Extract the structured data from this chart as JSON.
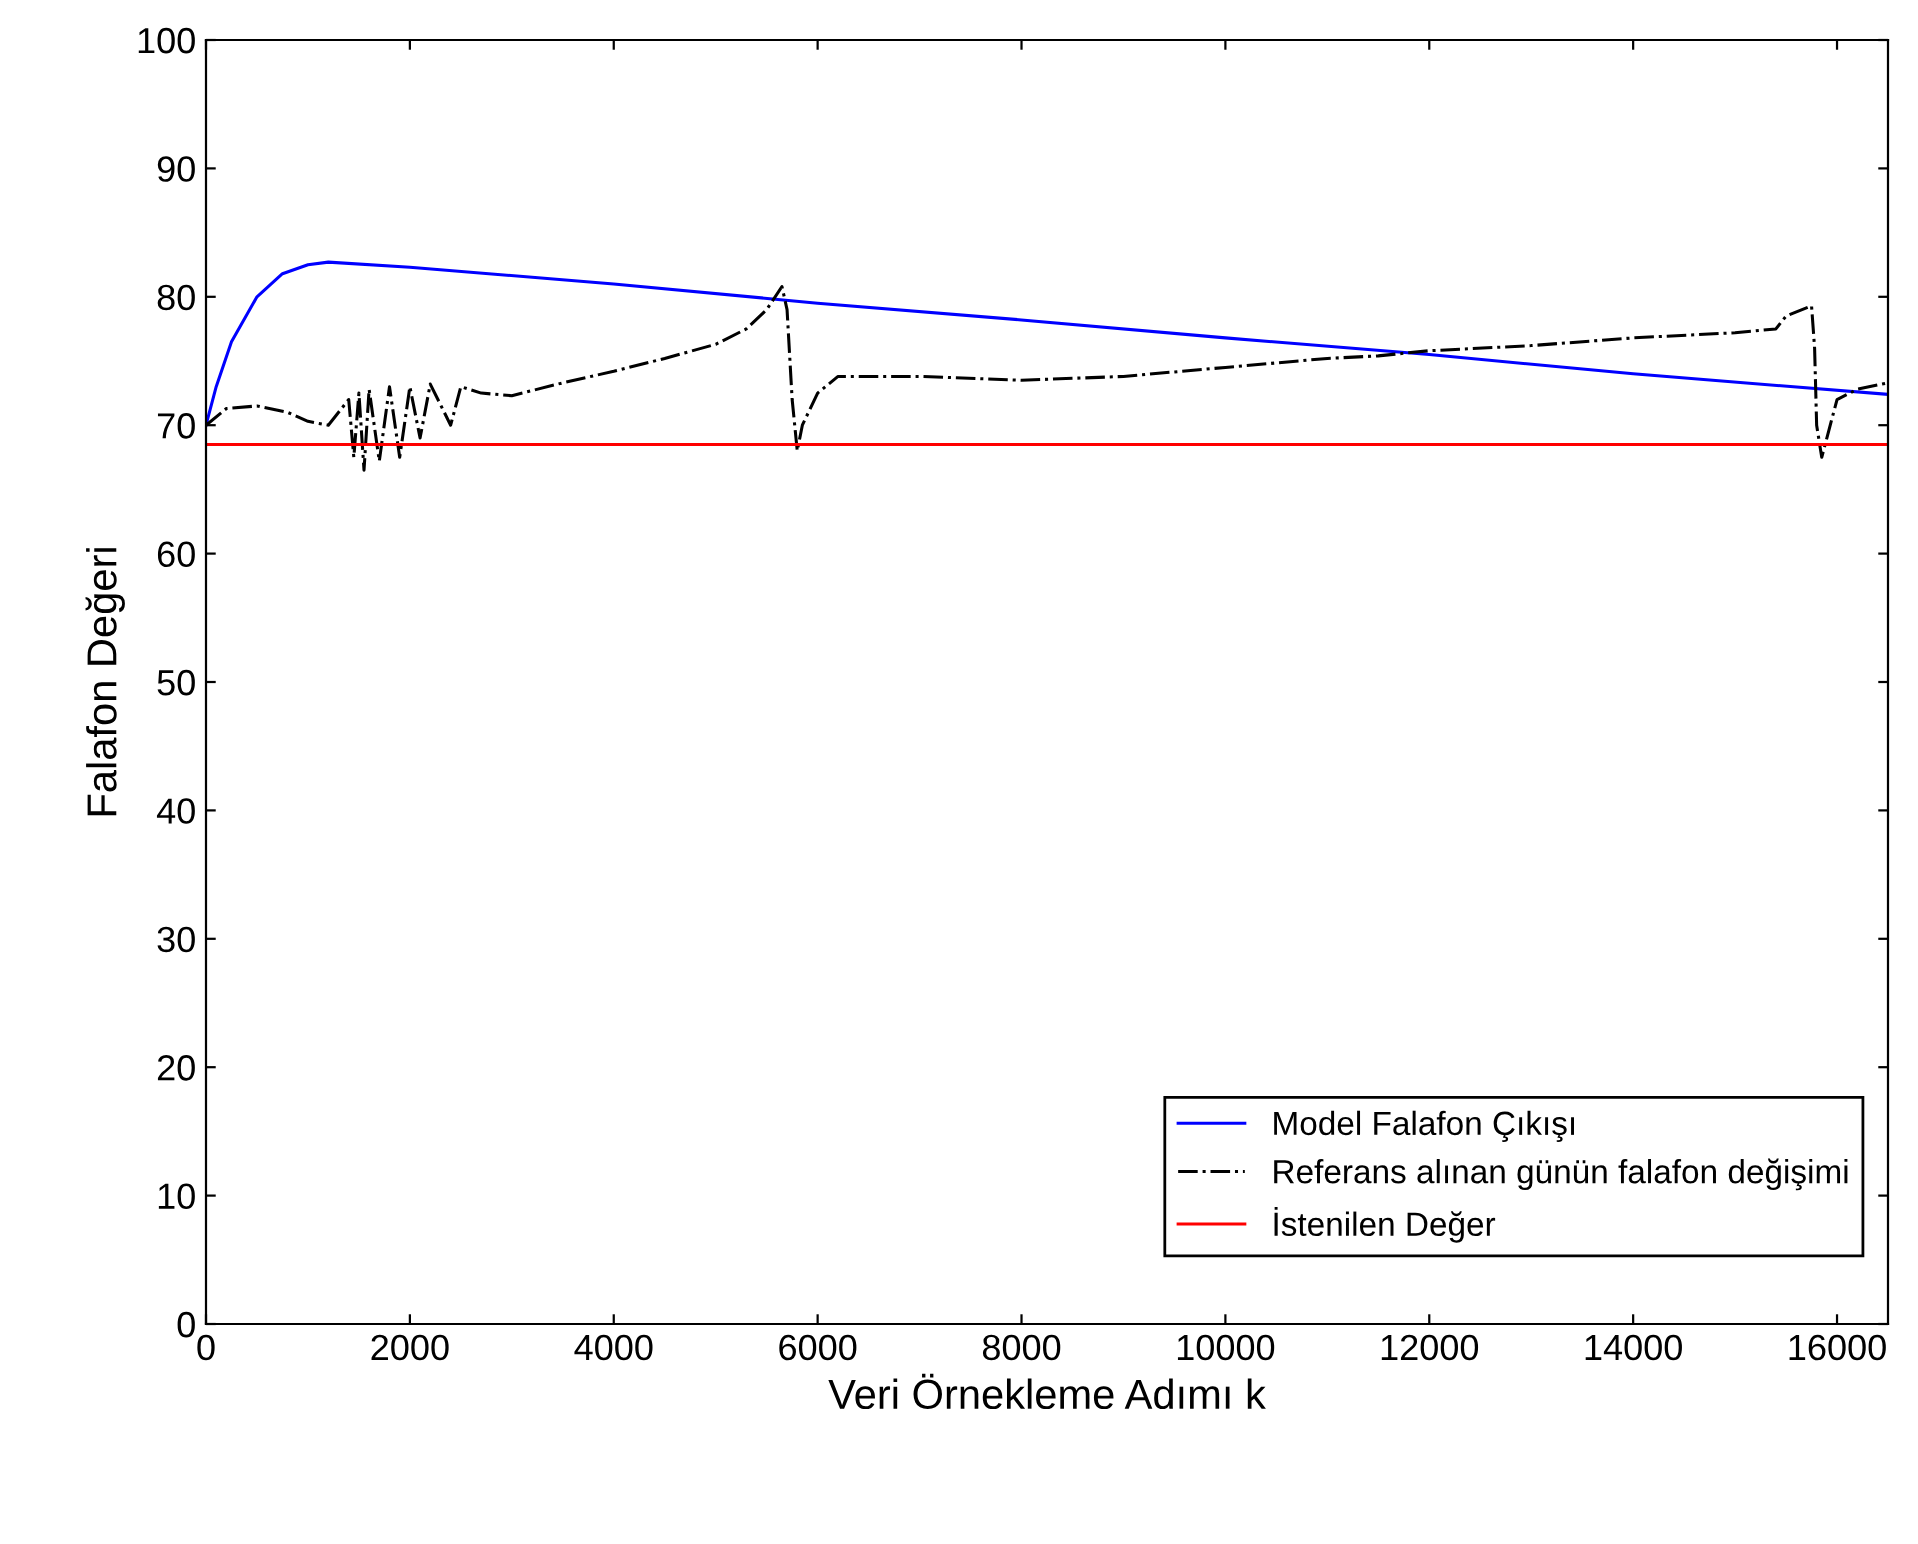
{
  "chart_data": {
    "type": "line",
    "xlabel": "Veri Örnekleme Adımı k",
    "ylabel": "Falafon Değeri",
    "xlim": [
      0,
      16500
    ],
    "xticks": [
      0,
      2000,
      4000,
      6000,
      8000,
      10000,
      12000,
      14000,
      16000
    ],
    "ylim": [
      0,
      100
    ],
    "yticks": [
      0,
      10,
      20,
      30,
      40,
      50,
      60,
      70,
      80,
      90,
      100
    ],
    "grid": false,
    "legend": "bottom right",
    "marker": "none",
    "series": [
      {
        "name": "Model Falafon Çıkışı",
        "color": "#0000ff",
        "line_style": "solid",
        "x": [
          0,
          100,
          250,
          500,
          750,
          1000,
          1200,
          2000,
          4000,
          6000,
          8000,
          10000,
          12000,
          14000,
          16500
        ],
        "values": [
          70,
          73,
          76.5,
          80,
          81.8,
          82.5,
          82.7,
          82.3,
          81,
          79.5,
          78.2,
          76.8,
          75.5,
          74,
          72.4
        ]
      },
      {
        "name": "Referans alınan günün falafon değişimi",
        "color": "#000000",
        "line_style": "dashdot",
        "x": [
          0,
          200,
          500,
          800,
          1000,
          1200,
          1400,
          1450,
          1500,
          1550,
          1600,
          1700,
          1800,
          1900,
          2000,
          2100,
          2200,
          2400,
          2500,
          2700,
          3000,
          3500,
          4000,
          4500,
          5000,
          5300,
          5500,
          5650,
          5700,
          5750,
          5800,
          5850,
          6000,
          6200,
          7000,
          8000,
          9000,
          10000,
          11000,
          11500,
          12000,
          13000,
          14000,
          15000,
          15400,
          15500,
          15750,
          15780,
          15800,
          15850,
          15900,
          16000,
          16200,
          16500
        ],
        "values": [
          70,
          71.3,
          71.5,
          71,
          70.3,
          70,
          72,
          67.5,
          72.5,
          66.5,
          72.8,
          67.2,
          73,
          67.5,
          73,
          69,
          73.2,
          70,
          73,
          72.5,
          72.3,
          73.3,
          74.2,
          75.2,
          76.3,
          77.5,
          79,
          80.8,
          79,
          72,
          68,
          70,
          72.5,
          73.8,
          73.8,
          73.5,
          73.8,
          74.5,
          75.2,
          75.4,
          75.8,
          76.2,
          76.8,
          77.2,
          77.5,
          78.5,
          79.3,
          76,
          70,
          67.5,
          69,
          72,
          72.8,
          73.3
        ]
      },
      {
        "name": "İstenilen Değer",
        "color": "#ff0000",
        "line_style": "solid",
        "x": [
          0,
          16500
        ],
        "values": [
          68.5,
          68.5
        ]
      }
    ]
  }
}
